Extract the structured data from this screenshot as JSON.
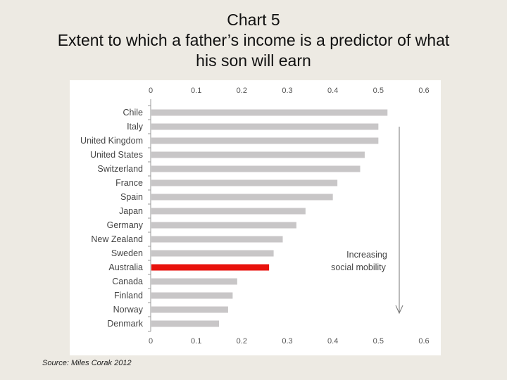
{
  "chart_number": "Chart 5",
  "title_line1": "Extent to which a father’s income is a predictor of what",
  "title_line2": "his son will earn",
  "source": "Source: Miles Corak 2012",
  "chart_data": {
    "type": "bar",
    "orientation": "horizontal",
    "categories": [
      "Chile",
      "Italy",
      "United Kingdom",
      "United States",
      "Switzerland",
      "France",
      "Spain",
      "Japan",
      "Germany",
      "New Zealand",
      "Sweden",
      "Australia",
      "Canada",
      "Finland",
      "Norway",
      "Denmark"
    ],
    "values": [
      0.52,
      0.5,
      0.5,
      0.47,
      0.46,
      0.41,
      0.4,
      0.34,
      0.32,
      0.29,
      0.27,
      0.26,
      0.19,
      0.18,
      0.17,
      0.15
    ],
    "highlight_category": "Australia",
    "bar_color": "#c8c6c7",
    "highlight_color": "#e8120c",
    "xlim": [
      0,
      0.6
    ],
    "xticks": [
      "0",
      "0.1",
      "0.2",
      "0.3",
      "0.4",
      "0.5",
      "0.6"
    ],
    "grid": false,
    "annotation": {
      "line1": "Increasing",
      "line2": "social mobility",
      "arrow": "down"
    }
  }
}
